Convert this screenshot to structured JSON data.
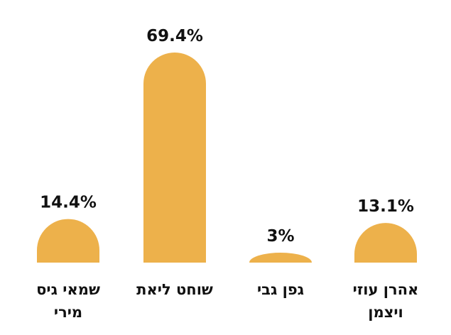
{
  "chart_data": {
    "type": "bar",
    "categories": [
      [
        "שמאי גיס",
        "מירי"
      ],
      [
        "שוחט ליאת"
      ],
      [
        "גפן גבי"
      ],
      [
        "אהרן עוזי",
        "ויצמן"
      ]
    ],
    "values": [
      14.4,
      69.4,
      3,
      13.1
    ],
    "value_labels": [
      "14.4%",
      "69.4%",
      "3%",
      "13.1%"
    ],
    "unit": "%",
    "ylim": [
      0,
      69.4
    ],
    "grid": false,
    "legend": "none",
    "bar_color": "#EDB14B",
    "text_color": "#111111",
    "background": "#ffffff"
  }
}
